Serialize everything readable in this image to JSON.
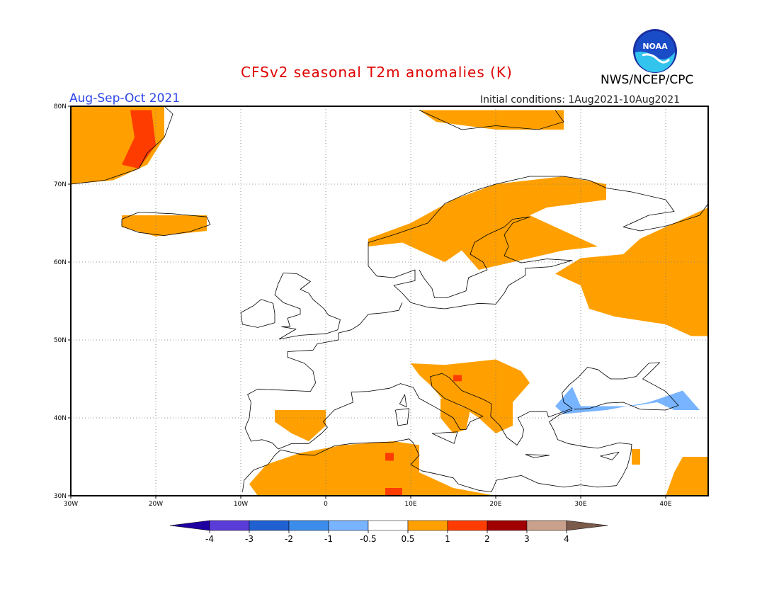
{
  "header": {
    "title": "CFSv2 seasonal T2m anomalies (K)",
    "agency": "NWS/NCEP/CPC",
    "period": "Aug-Sep-Oct 2021",
    "initial_conditions": "Initial conditions: 1Aug2021-10Aug2021",
    "logo_text": "NOAA"
  },
  "map": {
    "projection": "cylindrical-equidistant",
    "lon_range": [
      -30,
      45
    ],
    "lat_range": [
      30,
      80
    ],
    "lon_ticks": [
      "30W",
      "20W",
      "10W",
      "0",
      "10E",
      "20E",
      "30E",
      "40E"
    ],
    "lat_ticks": [
      "30N",
      "40N",
      "50N",
      "60N",
      "70N",
      "80N"
    ],
    "grid": "dotted",
    "colors": {
      "warm_0_5_1": "#ffa000",
      "warm_1_2": "#ff3c00",
      "cool_neg1_neg0_5": "#78b4ff",
      "coast": "#000000"
    }
  },
  "colorbar": {
    "labels": [
      "-4",
      "-3",
      "-2",
      "-1",
      "-0.5",
      "0.5",
      "1",
      "2",
      "3",
      "4"
    ],
    "colors": [
      "#1e00a0",
      "#5a3cd8",
      "#2060d0",
      "#3c8ceb",
      "#78b4ff",
      "#ffffff",
      "#ffa000",
      "#ff3c00",
      "#a00000",
      "#c8a08c",
      "#7a5a4a"
    ]
  }
}
